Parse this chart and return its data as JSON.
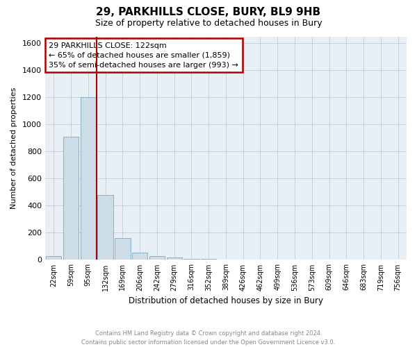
{
  "title": "29, PARKHILLS CLOSE, BURY, BL9 9HB",
  "subtitle": "Size of property relative to detached houses in Bury",
  "xlabel": "Distribution of detached houses by size in Bury",
  "ylabel": "Number of detached properties",
  "footer_line1": "Contains HM Land Registry data © Crown copyright and database right 2024.",
  "footer_line2": "Contains public sector information licensed under the Open Government Licence v3.0.",
  "bar_color": "#ccdde8",
  "bar_edge_color": "#8ab0c8",
  "vline_color": "#aa0000",
  "annotation_box_color": "#aa0000",
  "categories": [
    "22sqm",
    "59sqm",
    "95sqm",
    "132sqm",
    "169sqm",
    "206sqm",
    "242sqm",
    "279sqm",
    "316sqm",
    "352sqm",
    "389sqm",
    "426sqm",
    "462sqm",
    "499sqm",
    "536sqm",
    "573sqm",
    "609sqm",
    "646sqm",
    "683sqm",
    "719sqm",
    "756sqm"
  ],
  "values": [
    30,
    910,
    1200,
    480,
    160,
    55,
    30,
    20,
    8,
    5,
    3,
    1,
    1,
    1,
    0,
    0,
    0,
    0,
    0,
    0,
    0
  ],
  "ylim": [
    0,
    1650
  ],
  "yticks": [
    0,
    200,
    400,
    600,
    800,
    1000,
    1200,
    1400,
    1600
  ],
  "property_label": "29 PARKHILLS CLOSE: 122sqm",
  "annotation_line1": "← 65% of detached houses are smaller (1,859)",
  "annotation_line2": "35% of semi-detached houses are larger (993) →",
  "vline_position": 3,
  "background_color": "#ffffff",
  "plot_bg_color": "#e8eff5",
  "grid_color": "#c0ccd8"
}
